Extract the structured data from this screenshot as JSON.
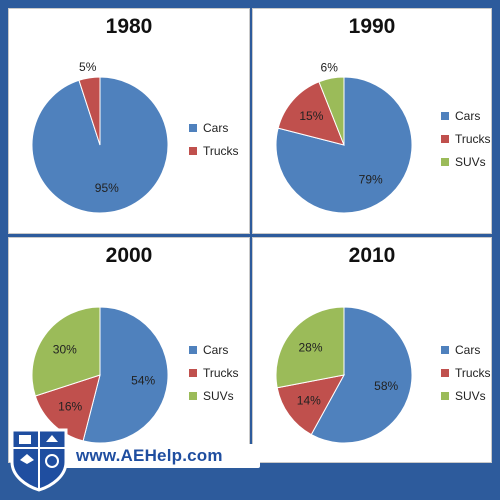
{
  "chart_data": [
    {
      "type": "pie",
      "title": "1980",
      "categories": [
        "Cars",
        "Trucks"
      ],
      "values": [
        95,
        5
      ],
      "labels": [
        "95%",
        "5%"
      ],
      "colors": [
        "#4f81bd",
        "#c0504d"
      ],
      "legend_position": "right"
    },
    {
      "type": "pie",
      "title": "1990",
      "categories": [
        "Cars",
        "Trucks",
        "SUVs"
      ],
      "values": [
        79,
        15,
        6
      ],
      "labels": [
        "79%",
        "15%",
        "6%"
      ],
      "colors": [
        "#4f81bd",
        "#c0504d",
        "#9bbb59"
      ],
      "legend_position": "right"
    },
    {
      "type": "pie",
      "title": "2000",
      "categories": [
        "Cars",
        "Trucks",
        "SUVs"
      ],
      "values": [
        54,
        16,
        30
      ],
      "labels": [
        "54%",
        "16%",
        "30%"
      ],
      "colors": [
        "#4f81bd",
        "#c0504d",
        "#9bbb59"
      ],
      "legend_position": "right"
    },
    {
      "type": "pie",
      "title": "2010",
      "categories": [
        "Cars",
        "Trucks",
        "SUVs"
      ],
      "values": [
        58,
        14,
        28
      ],
      "labels": [
        "58%",
        "14%",
        "28%"
      ],
      "colors": [
        "#4f81bd",
        "#c0504d",
        "#9bbb59"
      ],
      "legend_position": "right"
    }
  ],
  "branding": {
    "url": "www.AEHelp.com",
    "logo_icon": "shield-crest-icon"
  },
  "colors": {
    "background": "#2d5b9c",
    "brand_text": "#1f4ea0"
  }
}
